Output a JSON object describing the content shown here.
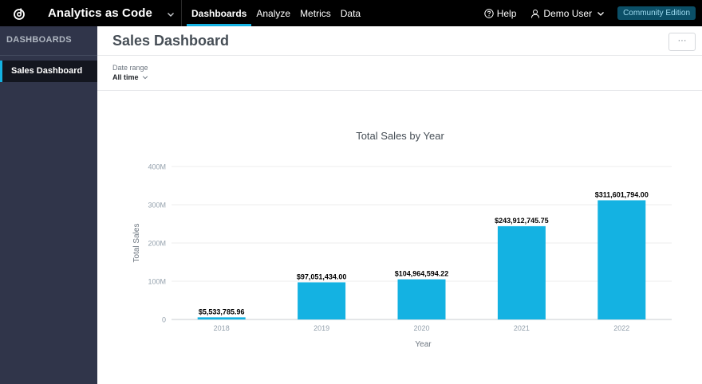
{
  "topbar": {
    "app_name": "Analytics as Code",
    "nav": [
      "Dashboards",
      "Analyze",
      "Metrics",
      "Data"
    ],
    "active_nav": "Dashboards",
    "help": "Help",
    "user": "Demo User",
    "edition": "Community Edition",
    "icons": {
      "logo": "gooddata-logo-icon",
      "app_chevron": "chevron-down-icon",
      "help": "question-circle-icon",
      "user": "user-icon",
      "user_chevron": "chevron-down-icon"
    }
  },
  "sidebar": {
    "title": "DASHBOARDS",
    "items": [
      {
        "label": "Sales Dashboard",
        "active": true
      }
    ]
  },
  "main": {
    "title": "Sales Dashboard",
    "more_label": "···",
    "filter": {
      "label": "Date range",
      "value": "All time"
    }
  },
  "colors": {
    "accent": "#14b2e2",
    "bar": "#14b2e2",
    "topbar": "#000000",
    "sidebar": "#30354a",
    "edition_bg": "#0b4f67"
  },
  "chart_data": {
    "type": "bar",
    "title": "Total Sales by Year",
    "xlabel": "Year",
    "ylabel": "Total Sales",
    "categories": [
      "2018",
      "2019",
      "2020",
      "2021",
      "2022"
    ],
    "values": [
      5533785.96,
      97051434.0,
      104964594.22,
      243912745.75,
      311601794.0
    ],
    "data_labels": [
      "$5,533,785.96",
      "$97,051,434.00",
      "$104,964,594.22",
      "$243,912,745.75",
      "$311,601,794.00"
    ],
    "yticks": [
      0,
      100000000,
      200000000,
      300000000,
      400000000
    ],
    "ytick_labels": [
      "0",
      "100M",
      "200M",
      "300M",
      "400M"
    ],
    "ylim": [
      0,
      400000000
    ],
    "grid": true,
    "legend": "none"
  }
}
